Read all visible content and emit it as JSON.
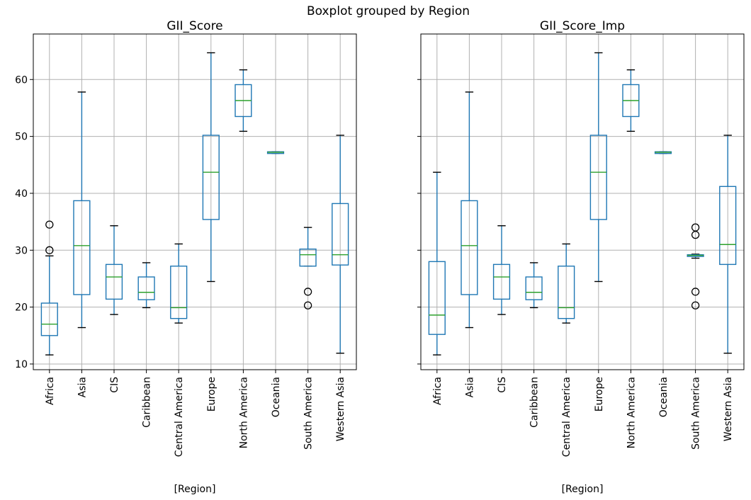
{
  "suptitle": "Boxplot grouped by Region",
  "colors": {
    "box": "#1f77b4",
    "median": "#2ca02c",
    "grid": "#b0b0b0",
    "flier": "#000000"
  },
  "chart_data": [
    {
      "type": "boxplot",
      "title": "GII_Score",
      "xlabel": "[Region]",
      "ylabel": "",
      "ylim": [
        9,
        68
      ],
      "yticks": [
        10,
        20,
        30,
        40,
        50,
        60
      ],
      "grid": true,
      "categories": [
        "Africa",
        "Asia",
        "CIS",
        "Caribbean",
        "Central America",
        "Europe",
        "North America",
        "Oceania",
        "South America",
        "Western Asia"
      ],
      "boxes": [
        {
          "whislo": 11.6,
          "q1": 15.0,
          "med": 17.0,
          "q3": 20.7,
          "whishi": 29.0,
          "fliers": [
            30.0,
            34.5
          ]
        },
        {
          "whislo": 16.4,
          "q1": 22.2,
          "med": 30.8,
          "q3": 38.7,
          "whishi": 57.8,
          "fliers": []
        },
        {
          "whislo": 18.7,
          "q1": 21.4,
          "med": 25.3,
          "q3": 27.5,
          "whishi": 34.3,
          "fliers": []
        },
        {
          "whislo": 19.9,
          "q1": 21.3,
          "med": 22.6,
          "q3": 25.3,
          "whishi": 27.8,
          "fliers": []
        },
        {
          "whislo": 17.2,
          "q1": 18.0,
          "med": 19.9,
          "q3": 27.2,
          "whishi": 31.1,
          "fliers": []
        },
        {
          "whislo": 24.5,
          "q1": 35.4,
          "med": 43.7,
          "q3": 50.2,
          "whishi": 64.7,
          "fliers": []
        },
        {
          "whislo": 50.9,
          "q1": 53.5,
          "med": 56.3,
          "q3": 59.1,
          "whishi": 61.7,
          "fliers": []
        },
        {
          "whislo": 47.0,
          "q1": 47.0,
          "med": 47.2,
          "q3": 47.3,
          "whishi": 47.3,
          "fliers": []
        },
        {
          "whislo": 27.2,
          "q1": 27.2,
          "med": 29.2,
          "q3": 30.2,
          "whishi": 34.0,
          "fliers": [
            20.3,
            22.7
          ]
        },
        {
          "whislo": 11.9,
          "q1": 27.4,
          "med": 29.2,
          "q3": 38.2,
          "whishi": 50.2,
          "fliers": []
        }
      ]
    },
    {
      "type": "boxplot",
      "title": "GII_Score_Imp",
      "xlabel": "[Region]",
      "ylabel": "",
      "ylim": [
        9,
        68
      ],
      "yticks": [
        10,
        20,
        30,
        40,
        50,
        60
      ],
      "grid": true,
      "categories": [
        "Africa",
        "Asia",
        "CIS",
        "Caribbean",
        "Central America",
        "Europe",
        "North America",
        "Oceania",
        "South America",
        "Western Asia"
      ],
      "boxes": [
        {
          "whislo": 11.6,
          "q1": 15.2,
          "med": 18.6,
          "q3": 28.0,
          "whishi": 43.7,
          "fliers": []
        },
        {
          "whislo": 16.4,
          "q1": 22.2,
          "med": 30.8,
          "q3": 38.7,
          "whishi": 57.8,
          "fliers": []
        },
        {
          "whislo": 18.7,
          "q1": 21.4,
          "med": 25.3,
          "q3": 27.5,
          "whishi": 34.3,
          "fliers": []
        },
        {
          "whislo": 19.9,
          "q1": 21.3,
          "med": 22.6,
          "q3": 25.3,
          "whishi": 27.8,
          "fliers": []
        },
        {
          "whislo": 17.2,
          "q1": 18.0,
          "med": 19.9,
          "q3": 27.2,
          "whishi": 31.1,
          "fliers": []
        },
        {
          "whislo": 24.5,
          "q1": 35.4,
          "med": 43.7,
          "q3": 50.2,
          "whishi": 64.7,
          "fliers": []
        },
        {
          "whislo": 50.9,
          "q1": 53.5,
          "med": 56.3,
          "q3": 59.1,
          "whishi": 61.7,
          "fliers": []
        },
        {
          "whislo": 47.0,
          "q1": 47.0,
          "med": 47.2,
          "q3": 47.3,
          "whishi": 47.3,
          "fliers": []
        },
        {
          "whislo": 28.6,
          "q1": 28.9,
          "med": 29.1,
          "q3": 29.2,
          "whishi": 29.3,
          "fliers": [
            20.3,
            22.7,
            32.7,
            34.0
          ]
        },
        {
          "whislo": 11.9,
          "q1": 27.5,
          "med": 31.0,
          "q3": 41.2,
          "whishi": 50.2,
          "fliers": []
        }
      ]
    }
  ]
}
